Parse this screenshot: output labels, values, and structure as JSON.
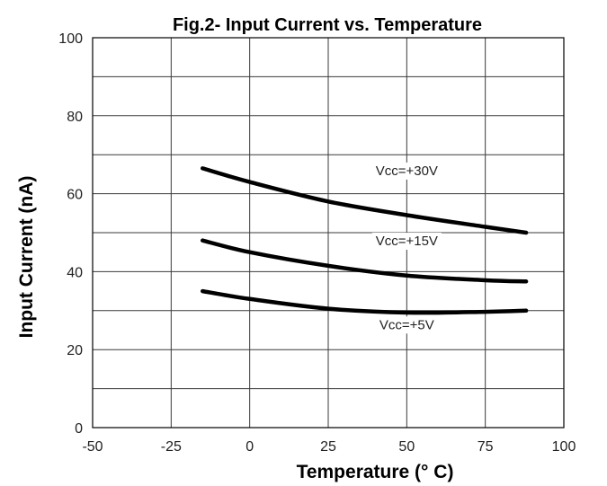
{
  "chart_data": {
    "type": "line",
    "title": "Fig.2- Input Current vs. Temperature",
    "xlabel": "Temperature (° C)",
    "ylabel": "Input Current (nA)",
    "xlim": [
      -50,
      100
    ],
    "ylim": [
      0,
      100
    ],
    "x_ticks": [
      -50,
      -25,
      0,
      25,
      50,
      75,
      100
    ],
    "y_ticks": [
      0,
      20,
      40,
      60,
      80,
      100
    ],
    "y_ticks_labeled": [
      0,
      20,
      40,
      60,
      80,
      100
    ],
    "grid": true,
    "series": [
      {
        "name": "Vcc=+30V",
        "label_pos": [
          50,
          65
        ],
        "x": [
          -15,
          0,
          25,
          50,
          75,
          88
        ],
        "y": [
          66.5,
          63,
          58,
          54.5,
          51.5,
          50
        ]
      },
      {
        "name": "Vcc=+15V",
        "label_pos": [
          50,
          47
        ],
        "x": [
          -15,
          0,
          25,
          50,
          75,
          88
        ],
        "y": [
          48,
          45,
          41.5,
          39,
          37.8,
          37.5
        ]
      },
      {
        "name": "Vcc=+5V",
        "label_pos": [
          50,
          25.5
        ],
        "x": [
          -15,
          0,
          25,
          50,
          75,
          88
        ],
        "y": [
          35,
          33,
          30.5,
          29.5,
          29.7,
          30
        ]
      }
    ]
  }
}
